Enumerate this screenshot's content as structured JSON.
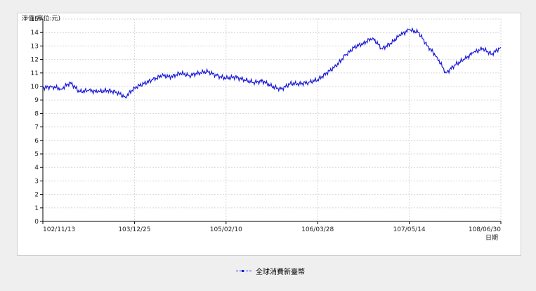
{
  "chart_data": {
    "type": "line",
    "ylabel": "淨值(單位:元)",
    "xlabel": "日期",
    "ylim": [
      0,
      15
    ],
    "yticks": [
      "0",
      "1",
      "2",
      "3",
      "4",
      "5",
      "6",
      "7",
      "8",
      "9",
      "10",
      "11",
      "12",
      "13",
      "14",
      "15"
    ],
    "xticks": [
      "102/11/13",
      "103/12/25",
      "105/02/10",
      "106/03/28",
      "107/05/14",
      "108/06/30"
    ],
    "grid": true,
    "legend_position": "bottom-center",
    "colors": {
      "line": "#1a1ad6"
    },
    "series": [
      {
        "name": "全球消費新臺幣",
        "x": [
          0,
          0.02,
          0.04,
          0.06,
          0.08,
          0.1,
          0.12,
          0.14,
          0.16,
          0.18,
          0.2,
          0.22,
          0.24,
          0.26,
          0.28,
          0.3,
          0.32,
          0.34,
          0.36,
          0.38,
          0.4,
          0.42,
          0.44,
          0.46,
          0.48,
          0.5,
          0.52,
          0.54,
          0.56,
          0.58,
          0.6,
          0.62,
          0.64,
          0.66,
          0.68,
          0.7,
          0.72,
          0.74,
          0.76,
          0.78,
          0.8,
          0.82,
          0.84,
          0.86,
          0.88,
          0.9,
          0.92,
          0.94,
          0.96,
          0.98,
          1.0
        ],
        "values": [
          9.9,
          10.0,
          9.8,
          10.3,
          9.6,
          9.7,
          9.6,
          9.7,
          9.6,
          9.2,
          9.9,
          10.2,
          10.5,
          10.8,
          10.7,
          11.0,
          10.8,
          11.0,
          11.1,
          10.8,
          10.6,
          10.7,
          10.5,
          10.3,
          10.4,
          10.0,
          9.8,
          10.2,
          10.2,
          10.3,
          10.5,
          11.0,
          11.5,
          12.3,
          12.9,
          13.2,
          13.6,
          12.8,
          13.2,
          13.8,
          14.2,
          14.0,
          13.0,
          12.2,
          11.0,
          11.6,
          12.0,
          12.5,
          12.8,
          12.4,
          12.9
        ]
      }
    ]
  }
}
